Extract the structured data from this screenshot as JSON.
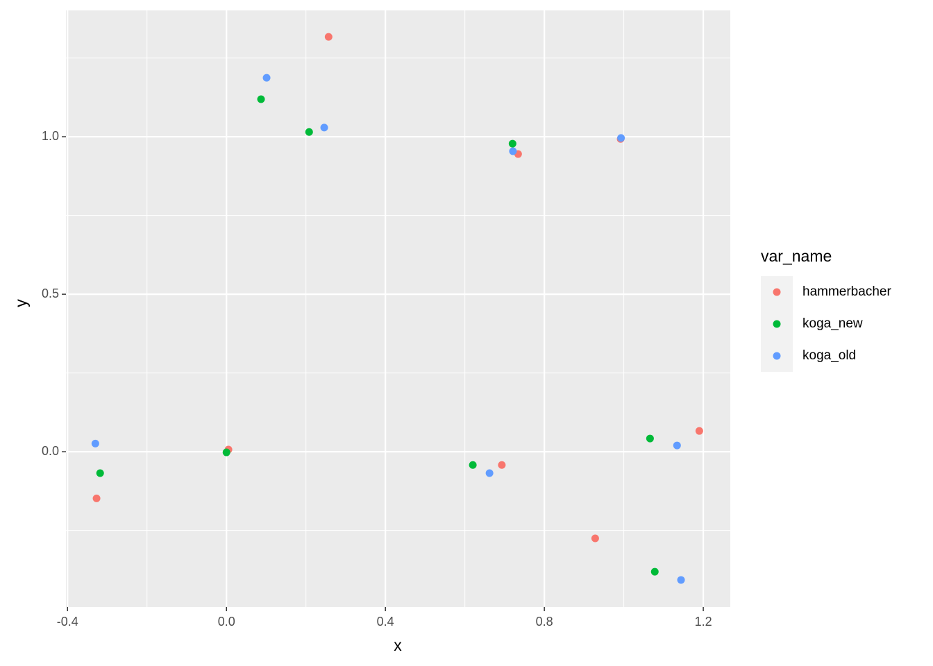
{
  "chart_data": {
    "type": "scatter",
    "x_label": "x",
    "y_label": "y",
    "xlim": [
      -0.404,
      1.268
    ],
    "ylim": [
      -0.493,
      1.401
    ],
    "xticks": [
      -0.4,
      {
        "value": 0,
        "label": "0.0"
      },
      0.4,
      0.8,
      1.2
    ],
    "yticks": [
      {
        "value": 0,
        "label": "0.0"
      },
      0.5,
      {
        "value": 1,
        "label": "1.0"
      }
    ],
    "x_minor_ticks": [
      -0.2,
      0.2,
      0.6,
      1.0
    ],
    "y_minor_ticks": [
      -0.25,
      0.25,
      0.75,
      1.25
    ],
    "grid": true,
    "legend_title": "var_name",
    "legend_position": "right",
    "series": [
      {
        "name": "hammerbacher",
        "color": "#F8766D",
        "x": [
          0.257,
          0.734,
          0.992,
          -0.327,
          0.005,
          0.693,
          0.928,
          1.19
        ],
        "values": [
          1.317,
          0.945,
          0.993,
          -0.148,
          0.007,
          -0.042,
          -0.275,
          0.066
        ]
      },
      {
        "name": "koga_new",
        "color": "#00BA38",
        "x": [
          0.087,
          0.208,
          0.72,
          -0.318,
          0.0,
          0.62,
          1.066,
          1.078
        ],
        "values": [
          1.119,
          1.015,
          0.978,
          -0.068,
          -0.002,
          -0.042,
          0.042,
          -0.381
        ]
      },
      {
        "name": "koga_old",
        "color": "#619CFF",
        "x": [
          0.101,
          0.246,
          0.721,
          0.993,
          -0.33,
          0.662,
          1.134,
          1.144
        ],
        "values": [
          1.187,
          1.029,
          0.954,
          0.996,
          0.026,
          -0.068,
          0.02,
          -0.407
        ]
      }
    ]
  }
}
